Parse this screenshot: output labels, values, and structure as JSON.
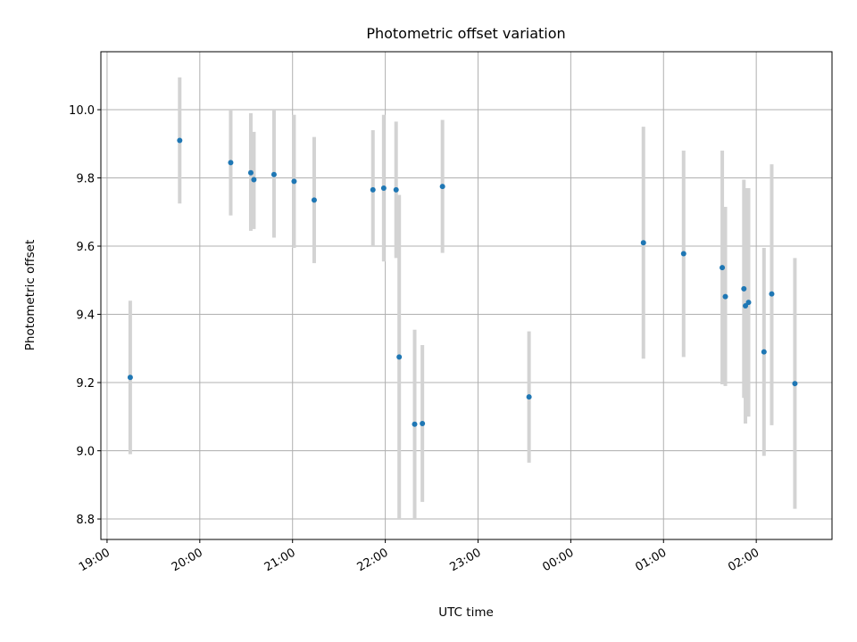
{
  "chart_data": {
    "type": "scatter",
    "title": "Photometric offset variation",
    "xlabel": "UTC time",
    "ylabel": "Photometric offset",
    "x_tick_labels": [
      "19:00",
      "20:00",
      "21:00",
      "22:00",
      "23:00",
      "00:00",
      "01:00",
      "02:00"
    ],
    "y_tick_labels": [
      "8.8",
      "9.0",
      "9.2",
      "9.4",
      "9.6",
      "9.8",
      "10.0"
    ],
    "y_ticks": [
      8.8,
      9.0,
      9.2,
      9.4,
      9.6,
      9.8,
      10.0
    ],
    "ylim": [
      8.74,
      10.17
    ],
    "xlim": [
      "18:56",
      "02:49"
    ],
    "x_axis_start_date_offset_note": "",
    "grid": true,
    "colors": {
      "marker": "#1f77b4",
      "errorbar": "#d3d3d3",
      "grid": "#b0b0b0"
    },
    "points": [
      {
        "time": "19:15",
        "y": 9.215,
        "err_low": 8.99,
        "err_high": 9.44
      },
      {
        "time": "19:47",
        "y": 9.91,
        "err_low": 9.725,
        "err_high": 10.095
      },
      {
        "time": "20:20",
        "y": 9.845,
        "err_low": 9.69,
        "err_high": 10.0
      },
      {
        "time": "20:33",
        "y": 9.815,
        "err_low": 9.645,
        "err_high": 9.99
      },
      {
        "time": "20:35",
        "y": 9.795,
        "err_low": 9.65,
        "err_high": 9.935
      },
      {
        "time": "20:48",
        "y": 9.81,
        "err_low": 9.625,
        "err_high": 10.0
      },
      {
        "time": "21:01",
        "y": 9.79,
        "err_low": 9.595,
        "err_high": 9.985
      },
      {
        "time": "21:14",
        "y": 9.735,
        "err_low": 9.55,
        "err_high": 9.92
      },
      {
        "time": "21:52",
        "y": 9.765,
        "err_low": 9.6,
        "err_high": 9.94
      },
      {
        "time": "21:59",
        "y": 9.77,
        "err_low": 9.555,
        "err_high": 9.985
      },
      {
        "time": "22:07",
        "y": 9.765,
        "err_low": 9.565,
        "err_high": 9.965
      },
      {
        "time": "22:09",
        "y": 9.275,
        "err_low": 8.8,
        "err_high": 9.75
      },
      {
        "time": "22:19",
        "y": 9.078,
        "err_low": 8.8,
        "err_high": 9.355
      },
      {
        "time": "22:24",
        "y": 9.08,
        "err_low": 8.85,
        "err_high": 9.31
      },
      {
        "time": "22:37",
        "y": 9.775,
        "err_low": 9.58,
        "err_high": 9.97
      },
      {
        "time": "23:33",
        "y": 9.158,
        "err_low": 8.965,
        "err_high": 9.35
      },
      {
        "time": "00:47",
        "y": 9.61,
        "err_low": 9.27,
        "err_high": 9.95
      },
      {
        "time": "01:13",
        "y": 9.578,
        "err_low": 9.275,
        "err_high": 9.88
      },
      {
        "time": "01:38",
        "y": 9.537,
        "err_low": 9.195,
        "err_high": 9.88
      },
      {
        "time": "01:40",
        "y": 9.452,
        "err_low": 9.19,
        "err_high": 9.715
      },
      {
        "time": "01:52",
        "y": 9.475,
        "err_low": 9.155,
        "err_high": 9.795
      },
      {
        "time": "01:53",
        "y": 9.425,
        "err_low": 9.08,
        "err_high": 9.77
      },
      {
        "time": "01:55",
        "y": 9.435,
        "err_low": 9.1,
        "err_high": 9.77
      },
      {
        "time": "02:05",
        "y": 9.29,
        "err_low": 8.985,
        "err_high": 9.595
      },
      {
        "time": "02:10",
        "y": 9.46,
        "err_low": 9.075,
        "err_high": 9.84
      },
      {
        "time": "02:25",
        "y": 9.197,
        "err_low": 8.83,
        "err_high": 9.565
      }
    ]
  }
}
